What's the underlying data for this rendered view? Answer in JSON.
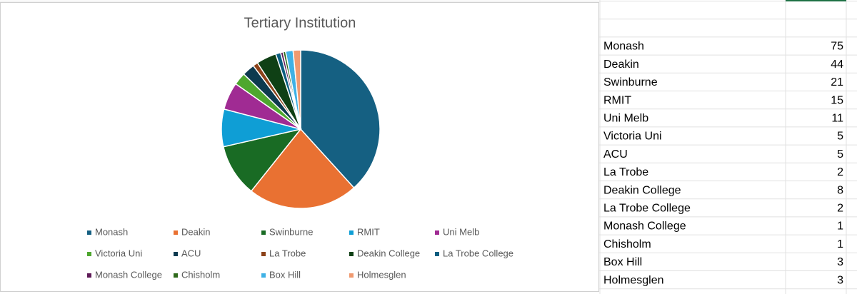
{
  "chart_data": {
    "type": "pie",
    "title": "Tertiary Institution",
    "categories": [
      "Monash",
      "Deakin",
      "Swinburne",
      "RMIT",
      "Uni Melb",
      "Victoria Uni",
      "ACU",
      "La Trobe",
      "Deakin College",
      "La Trobe College",
      "Monash College",
      "Chisholm",
      "Box Hill",
      "Holmesglen"
    ],
    "values": [
      75,
      44,
      21,
      15,
      11,
      5,
      5,
      2,
      8,
      2,
      1,
      1,
      3,
      3
    ],
    "colors": [
      "#156082",
      "#e97132",
      "#196b24",
      "#0f9ed5",
      "#a02b93",
      "#4ea72e",
      "#0d3a4f",
      "#8c4219",
      "#0f4015",
      "#0a5e80",
      "#5e1a57",
      "#2f6a1c",
      "#3fb1e5",
      "#f09a70"
    ],
    "legend": "bottom"
  }
}
